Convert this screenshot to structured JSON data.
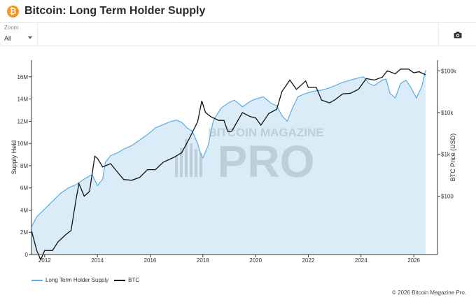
{
  "header": {
    "title": "Bitcoin: Long Term Holder Supply",
    "logo_glyph": "₿",
    "logo_color": "#f7931a"
  },
  "toolbar": {
    "zoom_label": "Zoom",
    "zoom_value": "All",
    "camera_icon": "camera-icon"
  },
  "watermark": {
    "line1": "BITCOIN MAGAZINE",
    "line2": "PRO"
  },
  "legend": {
    "supply_label": "Long Term Holder Supply",
    "btc_label": "BTC"
  },
  "credit": "© 2026 Bitcoin Magazine Pro.",
  "chart_data": {
    "type": "line",
    "xlabel": "",
    "ylabel_left": "Supply Held",
    "ylabel_right": "BTC Price (USD)",
    "x_ticks": [
      "2012",
      "2014",
      "2016",
      "2018",
      "2020",
      "2022",
      "2024",
      "2026"
    ],
    "y_left_ticks": [
      "0",
      "2M",
      "4M",
      "6M",
      "8M",
      "10M",
      "12M",
      "14M",
      "16M"
    ],
    "y_left_range": [
      0,
      17500000
    ],
    "y_right_ticks": [
      "$100",
      "$1k",
      "$10k",
      "$100k"
    ],
    "y_right_scale": "log",
    "x_range": [
      2011.5,
      2026.9
    ],
    "grid": false,
    "legend_position": "bottom-left",
    "colors": {
      "supply_line": "#5aaee0",
      "supply_fill": "#d9ecf8",
      "btc_line": "#111111"
    },
    "series": [
      {
        "name": "Long Term Holder Supply",
        "x": [
          2011.5,
          2011.7,
          2012.0,
          2012.3,
          2012.6,
          2012.9,
          2013.2,
          2013.5,
          2013.8,
          2014.0,
          2014.2,
          2014.3,
          2014.5,
          2014.8,
          2015.0,
          2015.3,
          2015.6,
          2015.9,
          2016.2,
          2016.5,
          2016.8,
          2017.0,
          2017.2,
          2017.4,
          2017.6,
          2017.8,
          2017.9,
          2018.0,
          2018.2,
          2018.4,
          2018.7,
          2019.0,
          2019.2,
          2019.5,
          2019.8,
          2020.0,
          2020.3,
          2020.6,
          2020.8,
          2021.0,
          2021.2,
          2021.4,
          2021.6,
          2021.9,
          2022.2,
          2022.5,
          2022.8,
          2023.0,
          2023.3,
          2023.6,
          2023.9,
          2024.1,
          2024.3,
          2024.5,
          2024.8,
          2024.95,
          2025.1,
          2025.3,
          2025.5,
          2025.7,
          2025.9,
          2026.1,
          2026.3,
          2026.45
        ],
        "values": [
          2500000,
          3400000,
          4100000,
          4800000,
          5500000,
          6000000,
          6300000,
          6800000,
          7200000,
          6200000,
          6800000,
          8300000,
          8900000,
          9200000,
          9500000,
          9800000,
          10300000,
          10800000,
          11400000,
          11700000,
          12000000,
          12100000,
          11900000,
          11400000,
          11100000,
          10000000,
          9200000,
          8700000,
          9800000,
          12100000,
          13200000,
          13700000,
          13900000,
          13300000,
          13800000,
          14000000,
          14200000,
          13600000,
          13400000,
          12500000,
          12000000,
          13200000,
          14200000,
          14500000,
          14700000,
          14800000,
          15000000,
          15200000,
          15500000,
          15700000,
          15900000,
          16000000,
          15400000,
          15200000,
          15700000,
          15800000,
          14500000,
          14100000,
          15400000,
          15700000,
          15000000,
          14100000,
          15100000,
          16600000
        ]
      },
      {
        "name": "BTC",
        "x": [
          2011.5,
          2011.7,
          2011.85,
          2012.0,
          2012.3,
          2012.5,
          2012.8,
          2013.0,
          2013.2,
          2013.3,
          2013.5,
          2013.7,
          2013.9,
          2014.0,
          2014.2,
          2014.5,
          2014.8,
          2015.0,
          2015.3,
          2015.6,
          2015.9,
          2016.2,
          2016.5,
          2016.9,
          2017.2,
          2017.5,
          2017.8,
          2017.96,
          2018.1,
          2018.3,
          2018.6,
          2018.8,
          2018.95,
          2019.1,
          2019.5,
          2019.8,
          2020.0,
          2020.2,
          2020.5,
          2020.8,
          2021.0,
          2021.3,
          2021.55,
          2021.9,
          2022.0,
          2022.3,
          2022.5,
          2022.8,
          2023.0,
          2023.3,
          2023.6,
          2023.9,
          2024.2,
          2024.5,
          2024.8,
          2025.0,
          2025.3,
          2025.5,
          2025.8,
          2026.0,
          2026.2,
          2026.45
        ],
        "values": [
          15,
          5,
          3,
          5,
          5,
          8,
          12,
          15,
          90,
          200,
          100,
          130,
          900,
          800,
          500,
          600,
          350,
          250,
          240,
          280,
          430,
          430,
          650,
          850,
          1100,
          2500,
          6000,
          19000,
          10000,
          8000,
          6500,
          6500,
          3500,
          3600,
          10000,
          8000,
          7500,
          5000,
          9500,
          12000,
          32000,
          60000,
          36000,
          57000,
          40000,
          40000,
          20000,
          17000,
          20000,
          28000,
          29000,
          36000,
          65000,
          60000,
          70000,
          100000,
          85000,
          110000,
          110000,
          90000,
          95000,
          80000
        ]
      }
    ]
  }
}
